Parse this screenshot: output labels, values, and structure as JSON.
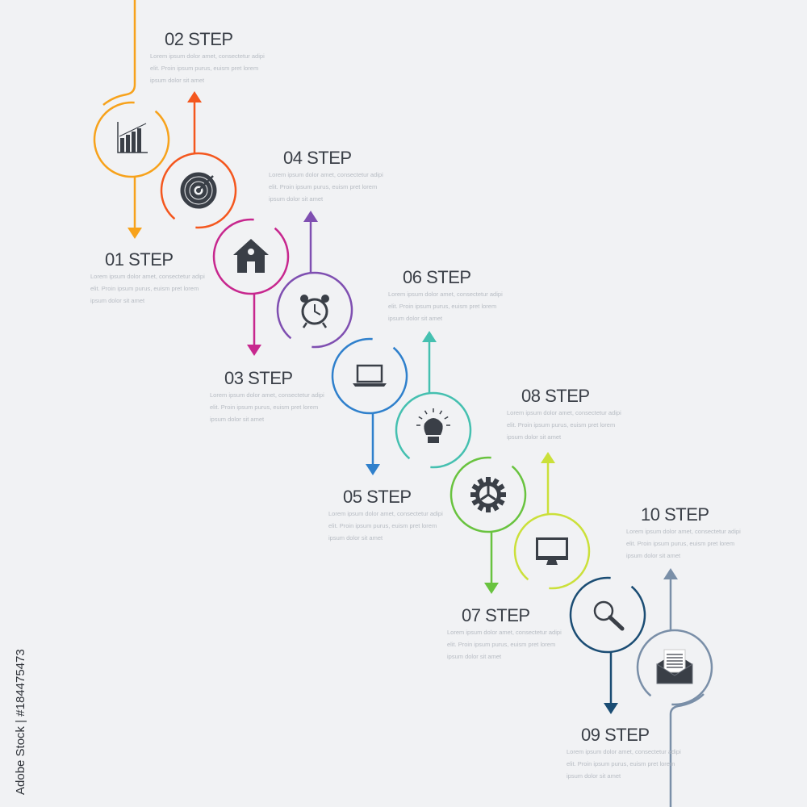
{
  "steps": [
    {
      "title": "01 STEP",
      "color": "#f7a21b",
      "icon": "bar-chart-icon",
      "direction": "down",
      "body": [
        "Lorem ipsum dolor amet, consectetur adipi",
        "elit. Proin ipsum purus, euism pret lorem",
        "ipsum dolor sit amet"
      ]
    },
    {
      "title": "02 STEP",
      "color": "#f4571e",
      "icon": "target-icon",
      "direction": "up",
      "body": [
        "Lorem ipsum dolor amet, consectetur adipi",
        "elit. Proin ipsum purus, euism pret lorem",
        "ipsum dolor sit amet"
      ]
    },
    {
      "title": "03 STEP",
      "color": "#c7278e",
      "icon": "house-icon",
      "direction": "down",
      "body": [
        "Lorem ipsum dolor amet, consectetur adipi",
        "elit. Proin ipsum purus, euism pret lorem",
        "ipsum dolor sit amet"
      ]
    },
    {
      "title": "04 STEP",
      "color": "#7f4fb1",
      "icon": "alarm-clock-icon",
      "direction": "up",
      "body": [
        "Lorem ipsum dolor amet, consectetur adipi",
        "elit. Proin ipsum purus, euism pret lorem",
        "ipsum dolor sit amet"
      ]
    },
    {
      "title": "05 STEP",
      "color": "#2f80cc",
      "icon": "laptop-icon",
      "direction": "down",
      "body": [
        "Lorem ipsum dolor amet, consectetur adipi",
        "elit. Proin ipsum purus, euism pret lorem",
        "ipsum dolor sit amet"
      ]
    },
    {
      "title": "06 STEP",
      "color": "#45c0b0",
      "icon": "light-bulb-icon",
      "direction": "up",
      "body": [
        "Lorem ipsum dolor amet, consectetur adipi",
        "elit. Proin ipsum purus, euism pret lorem",
        "ipsum dolor sit amet"
      ]
    },
    {
      "title": "07 STEP",
      "color": "#69c33f",
      "icon": "gear-icon",
      "direction": "down",
      "body": [
        "Lorem ipsum dolor amet, consectetur adipi",
        "elit. Proin ipsum purus, euism pret lorem",
        "ipsum dolor sit amet"
      ]
    },
    {
      "title": "08 STEP",
      "color": "#cbe03a",
      "icon": "monitor-icon",
      "direction": "up",
      "body": [
        "Lorem ipsum dolor amet, consectetur adipi",
        "elit. Proin ipsum purus, euism pret lorem",
        "ipsum dolor sit amet"
      ]
    },
    {
      "title": "09 STEP",
      "color": "#1b4d74",
      "icon": "magnifier-icon",
      "direction": "down",
      "body": [
        "Lorem ipsum dolor amet, consectetur adipi",
        "elit. Proin ipsum purus, euism pret lorem",
        "ipsum dolor sit amet"
      ]
    },
    {
      "title": "10 STEP",
      "color": "#7a8fa8",
      "icon": "envelope-icon",
      "direction": "up",
      "body": [
        "Lorem ipsum dolor amet, consectetur adipi",
        "elit. Proin ipsum purus, euism pret lorem",
        "ipsum dolor sit amet"
      ]
    }
  ],
  "icon_color": "#3a3f47",
  "watermark": {
    "side_text": "Adobe Stock | #184475473",
    "tile_text": "Adobe Stock"
  }
}
